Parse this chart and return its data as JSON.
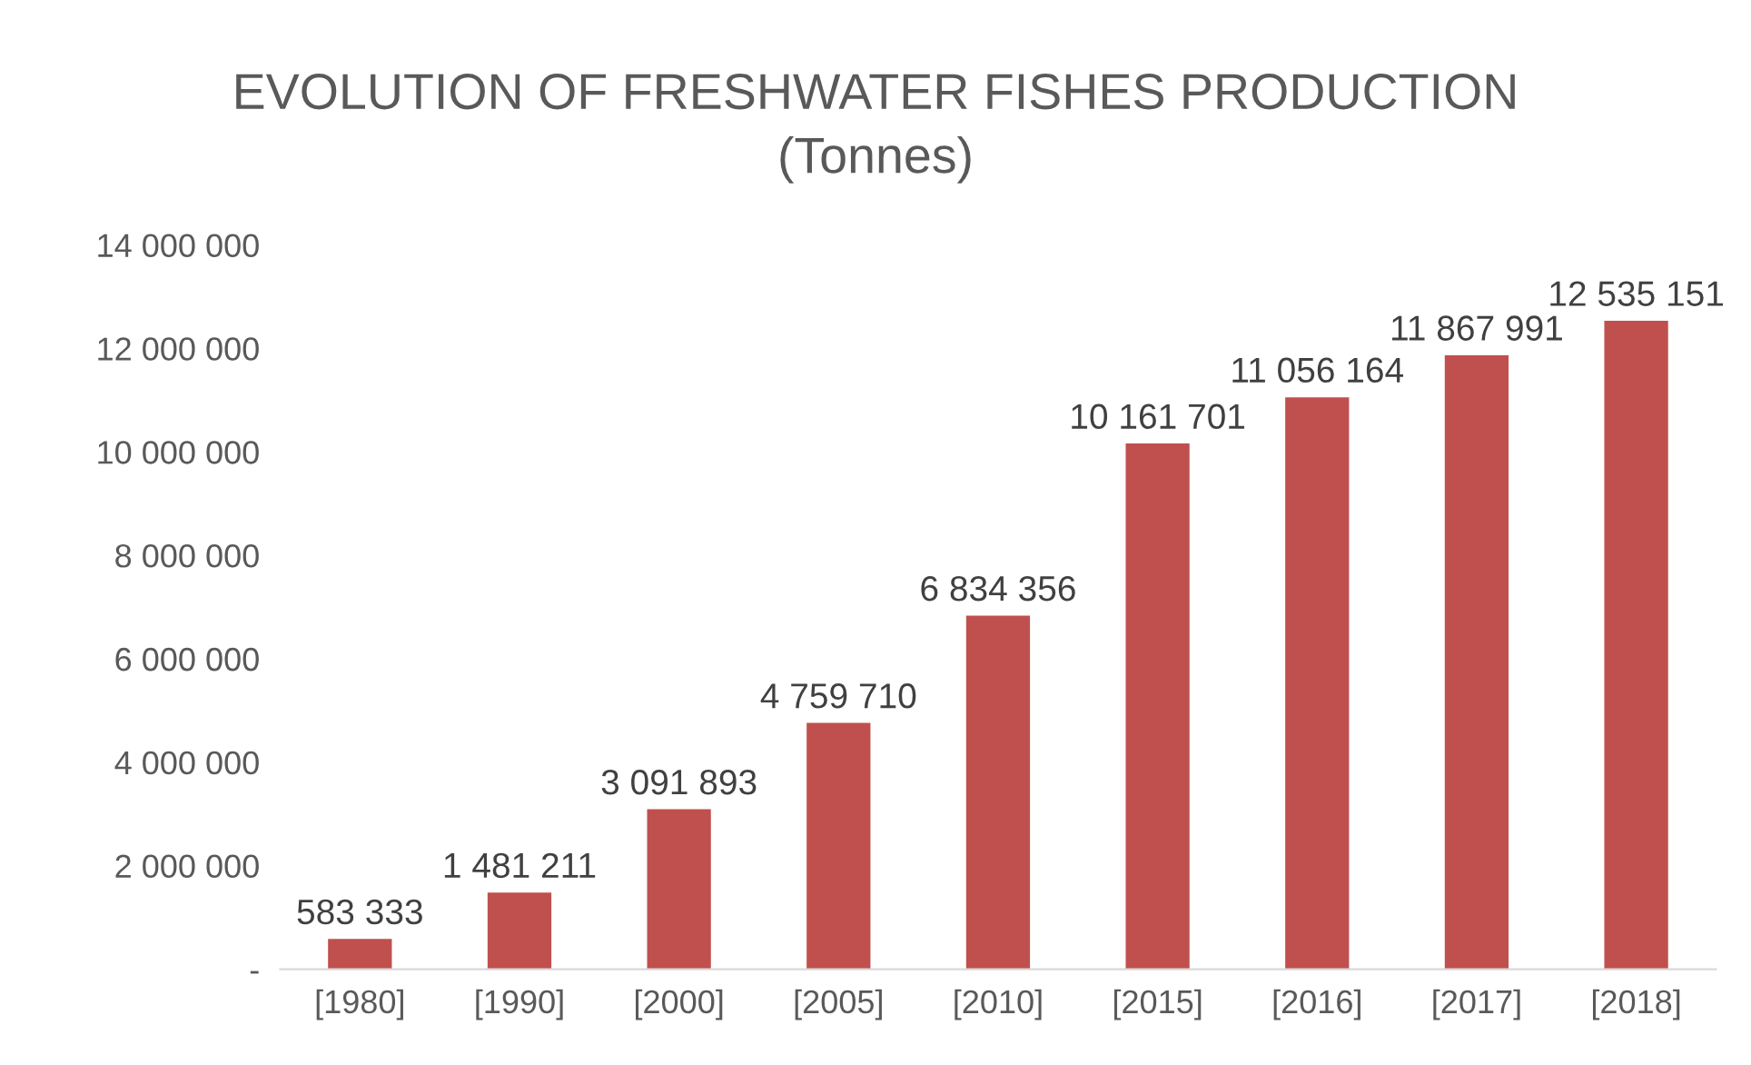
{
  "chart_data": {
    "type": "bar",
    "title": "EVOLUTION OF FRESHWATER FISHES PRODUCTION",
    "subtitle": "(Tonnes)",
    "categories": [
      "[1980]",
      "[1990]",
      "[2000]",
      "[2005]",
      "[2010]",
      "[2015]",
      "[2016]",
      "[2017]",
      "[2018]"
    ],
    "values": [
      583333,
      1481211,
      3091893,
      4759710,
      6834356,
      10161701,
      11056164,
      11867991,
      12535151
    ],
    "value_labels": [
      "583 333",
      "1 481 211",
      "3 091 893",
      "4 759 710",
      "6 834 356",
      "10 161 701",
      "11 056 164",
      "11 867 991",
      "12 535 151"
    ],
    "color": "#c0504d",
    "ylim": [
      0,
      14000000
    ],
    "yticks": [
      {
        "value": 0,
        "label": "-"
      },
      {
        "value": 2000000,
        "label": "2 000 000"
      },
      {
        "value": 4000000,
        "label": "4 000 000"
      },
      {
        "value": 6000000,
        "label": "6 000 000"
      },
      {
        "value": 8000000,
        "label": "8 000 000"
      },
      {
        "value": 10000000,
        "label": "10 000 000"
      },
      {
        "value": 12000000,
        "label": "12 000 000"
      },
      {
        "value": 14000000,
        "label": "14 000 000"
      }
    ]
  }
}
